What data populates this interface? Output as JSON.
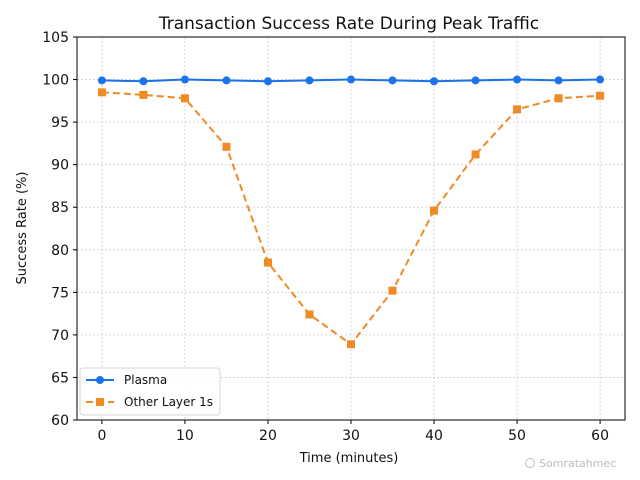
{
  "chart_data": {
    "type": "line",
    "title": "Transaction Success Rate During Peak Traffic",
    "xlabel": "Time (minutes)",
    "ylabel": "Success Rate (%)",
    "x": [
      0,
      5,
      10,
      15,
      20,
      25,
      30,
      35,
      40,
      45,
      50,
      55,
      60
    ],
    "xlim": [
      -3,
      63
    ],
    "ylim": [
      60,
      105
    ],
    "xticks": [
      0,
      10,
      20,
      30,
      40,
      50,
      60
    ],
    "yticks": [
      60,
      65,
      70,
      75,
      80,
      85,
      90,
      95,
      100,
      105
    ],
    "grid": true,
    "legend_position": "lower-left",
    "series": [
      {
        "name": "Plasma",
        "color": "#1a73e8",
        "line_style": "solid",
        "marker": "circle",
        "values": [
          99.9,
          99.8,
          100.0,
          99.9,
          99.8,
          99.9,
          100.0,
          99.9,
          99.8,
          99.9,
          100.0,
          99.9,
          100.0
        ]
      },
      {
        "name": "Other Layer 1s",
        "color": "#f08a24",
        "line_style": "dashed",
        "marker": "square",
        "values": [
          98.5,
          98.2,
          97.8,
          92.1,
          78.5,
          72.4,
          68.9,
          75.2,
          84.6,
          91.2,
          96.5,
          97.8,
          98.1
        ]
      }
    ]
  },
  "watermark": "Somratahmec"
}
